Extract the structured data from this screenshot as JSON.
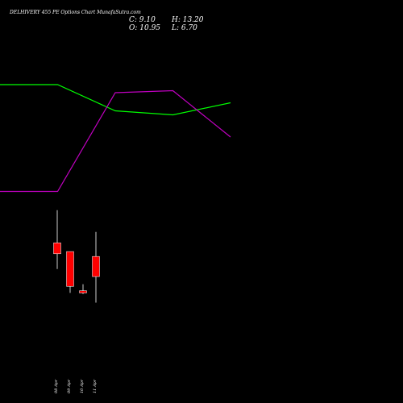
{
  "chart_data": {
    "type": "candlestick",
    "title": "DELHIVERY 455 PE Options  Chart MunafaSutra.com",
    "ohlc_readout": {
      "close_label": "C: 9.10",
      "high_label": "H: 13.20",
      "open_label": "O: 10.95",
      "low_label": "L: 6.70"
    },
    "x_tick_labels": [
      "08 Apr",
      "09 Apr",
      "10 Apr",
      "11 Apr"
    ],
    "candles": [
      {
        "label": "08 Apr",
        "open": 11.2,
        "high": 15.2,
        "low": 9.8,
        "close": 12.2
      },
      {
        "label": "09 Apr",
        "open": 11.4,
        "high": 11.4,
        "low": 7.6,
        "close": 8.2
      },
      {
        "label": "10 Apr",
        "open": 7.8,
        "high": 8.4,
        "low": 7.5,
        "close": 7.6
      },
      {
        "label": "11 Apr",
        "open": 10.95,
        "high": 13.2,
        "low": 6.7,
        "close": 9.1
      }
    ],
    "lines": [
      {
        "color": "#00ff00",
        "points": [
          [
            0,
            0.42
          ],
          [
            1,
            0.42
          ],
          [
            2,
            0.55
          ],
          [
            3,
            0.57
          ],
          [
            4,
            0.51
          ]
        ]
      },
      {
        "color": "#c000c0",
        "points": [
          [
            0,
            0.95
          ],
          [
            1,
            0.95
          ],
          [
            2,
            0.46
          ],
          [
            3,
            0.45
          ],
          [
            4,
            0.68
          ]
        ]
      }
    ],
    "colors": {
      "bear": "#ff0000",
      "line1": "#00ff00",
      "line2": "#c000c0",
      "background": "#000000",
      "wick": "#ffffff"
    }
  }
}
